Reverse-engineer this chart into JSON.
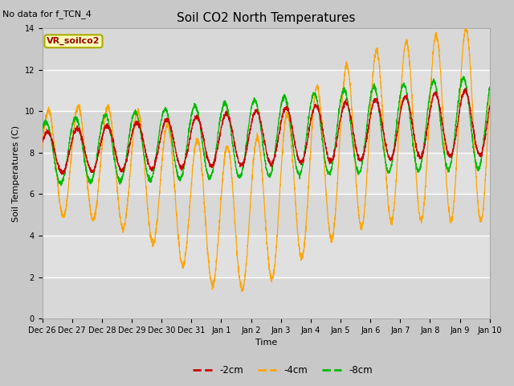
{
  "title": "Soil CO2 North Temperatures",
  "subtitle": "No data for f_TCN_4",
  "ylabel": "Soil Temperatures (C)",
  "xlabel": "Time",
  "sensor_label": "VR_soilco2",
  "ylim": [
    0,
    14
  ],
  "fig_facecolor": "#c8c8c8",
  "ax_facecolor": "#e0e0e0",
  "band_color": "#d0d0d0",
  "line_colors": {
    "2cm": "#cc0000",
    "4cm": "#ffa500",
    "8cm": "#00bb00"
  },
  "legend_labels": [
    "-2cm",
    "-4cm",
    "-8cm"
  ],
  "x_tick_labels": [
    "Dec 26",
    "Dec 27",
    "Dec 28",
    "Dec 29",
    "Dec 30",
    "Dec 31",
    "Jan 1",
    "Jan 2",
    "Jan 3",
    "Jan 4",
    "Jan 5",
    "Jan 6",
    "Jan 7",
    "Jan 8",
    "Jan 9",
    "Jan 10"
  ],
  "y_ticks": [
    0,
    2,
    4,
    6,
    8,
    10,
    12,
    14
  ],
  "title_fontsize": 11,
  "axis_fontsize": 8,
  "tick_fontsize": 7
}
